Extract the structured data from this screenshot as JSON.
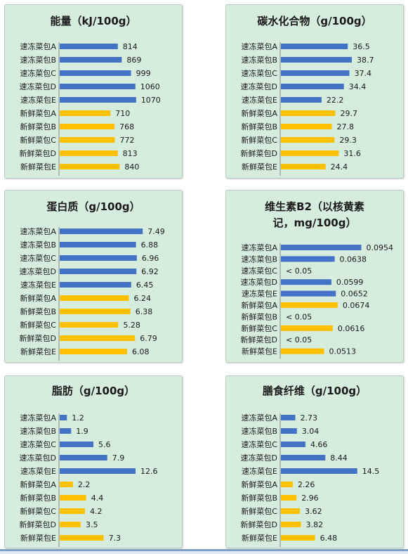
{
  "colors": {
    "frozen": "#4472c4",
    "fresh": "#ffc000",
    "panel_bg": "#d6ecdd"
  },
  "chart_data": [
    {
      "type": "bar",
      "title": "能量（kJ/100g）",
      "categories": [
        "速冻菜包A",
        "速冻菜包B",
        "速冻菜包C",
        "速冻菜包D",
        "速冻菜包E",
        "新鲜菜包A",
        "新鲜菜包B",
        "新鲜菜包C",
        "新鲜菜包D",
        "新鲜菜包E"
      ],
      "values": [
        814,
        869,
        999,
        1060,
        1070,
        710,
        768,
        772,
        813,
        840
      ],
      "labels": [
        "814",
        "869",
        "999",
        "1060",
        "1070",
        "710",
        "768",
        "772",
        "813",
        "840"
      ],
      "xlim": [
        0,
        1180
      ]
    },
    {
      "type": "bar",
      "title": "碳水化合物（g/100g）",
      "categories": [
        "速冻菜包A",
        "速冻菜包B",
        "速冻菜包C",
        "速冻菜包D",
        "速冻菜包E",
        "新鲜菜包A",
        "新鲜菜包B",
        "新鲜菜包C",
        "新鲜菜包D",
        "新鲜菜包E"
      ],
      "values": [
        36.5,
        38.7,
        37.4,
        34.4,
        22.2,
        29.7,
        27.8,
        29.3,
        31.6,
        24.4
      ],
      "labels": [
        "36.5",
        "38.7",
        "37.4",
        "34.4",
        "22.2",
        "29.7",
        "27.8",
        "29.3",
        "31.6",
        "24.4"
      ],
      "xlim": [
        0,
        46
      ]
    },
    {
      "type": "bar",
      "title": "蛋白质（g/100g）",
      "categories": [
        "速冻菜包A",
        "速冻菜包B",
        "速冻菜包C",
        "速冻菜包D",
        "速冻菜包E",
        "新鲜菜包A",
        "新鲜菜包B",
        "新鲜菜包C",
        "新鲜菜包D",
        "新鲜菜包E"
      ],
      "values": [
        7.49,
        6.88,
        6.96,
        6.92,
        6.45,
        6.24,
        6.38,
        5.28,
        6.79,
        6.08
      ],
      "labels": [
        "7.49",
        "6.88",
        "6.96",
        "6.92",
        "6.45",
        "6.24",
        "6.38",
        "5.28",
        "6.79",
        "6.08"
      ],
      "xlim": [
        0,
        7.6
      ]
    },
    {
      "type": "bar",
      "title": "维生素B2（以核黄素记，mg/100g）",
      "title_lines": [
        "维生素B2（以核黄素",
        "记，mg/100g）"
      ],
      "categories": [
        "速冻菜包A",
        "速冻菜包B",
        "速冻菜包C",
        "速冻菜包D",
        "速冻菜包E",
        "新鲜菜包A",
        "新鲜菜包B",
        "新鲜菜包C",
        "新鲜菜包D",
        "新鲜菜包E"
      ],
      "values": [
        0.0954,
        0.0638,
        0,
        0.0599,
        0.0652,
        0.0674,
        0,
        0.0616,
        0,
        0.0513
      ],
      "labels": [
        "0.0954",
        "0.0638",
        "< 0.05",
        "0.0599",
        "0.0652",
        "0.0674",
        "< 0.05",
        "0.0616",
        "< 0.05",
        "0.0513"
      ],
      "xlim": [
        0,
        0.1
      ]
    },
    {
      "type": "bar",
      "title": "脂肪（g/100g）",
      "categories": [
        "速冻菜包A",
        "速冻菜包B",
        "速冻菜包C",
        "速冻菜包D",
        "速冻菜包E",
        "新鲜菜包A",
        "新鲜菜包B",
        "新鲜菜包C",
        "新鲜菜包D",
        "新鲜菜包E"
      ],
      "values": [
        1.2,
        1.9,
        5.6,
        7.9,
        12.6,
        2.2,
        4.4,
        4.2,
        3.5,
        7.3
      ],
      "labels": [
        "1.2",
        "1.9",
        "5.6",
        "7.9",
        "12.6",
        "2.2",
        "4.4",
        "4.2",
        "3.5",
        "7.3"
      ],
      "xlim": [
        0,
        14
      ]
    },
    {
      "type": "bar",
      "title": "膳食纤维（g/100g）",
      "categories": [
        "速冻菜包A",
        "速冻菜包B",
        "速冻菜包C",
        "速冻菜包D",
        "速冻菜包E",
        "新鲜菜包A",
        "新鲜菜包B",
        "新鲜菜包C",
        "新鲜菜包D",
        "新鲜菜包E"
      ],
      "values": [
        2.73,
        3.04,
        4.66,
        8.44,
        14.5,
        2.26,
        2.96,
        3.62,
        3.82,
        6.48
      ],
      "labels": [
        "2.73",
        "3.04",
        "4.66",
        "8.44",
        "14.5",
        "2.26",
        "2.96",
        "3.62",
        "3.82",
        "6.48"
      ],
      "xlim": [
        0,
        16
      ]
    }
  ]
}
